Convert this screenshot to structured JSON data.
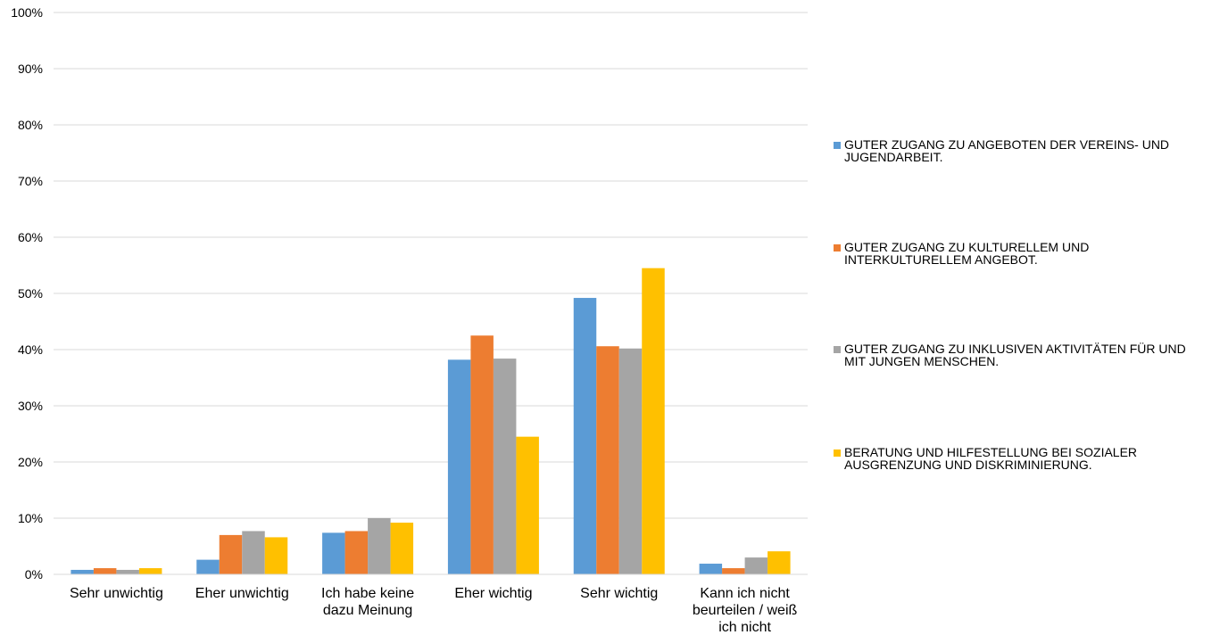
{
  "chart_data": {
    "type": "bar",
    "title": "",
    "xlabel": "",
    "ylabel": "",
    "ylim": [
      0,
      100
    ],
    "y_ticks": [
      "0%",
      "10%",
      "20%",
      "30%",
      "40%",
      "50%",
      "60%",
      "70%",
      "80%",
      "90%",
      "100%"
    ],
    "grid": true,
    "legend_position": "right",
    "categories": [
      [
        "Sehr unwichtig"
      ],
      [
        "Eher unwichtig"
      ],
      [
        "Ich habe keine",
        "dazu Meinung"
      ],
      [
        "Eher wichtig"
      ],
      [
        "Sehr wichtig"
      ],
      [
        "Kann ich nicht",
        "beurteilen / weiß",
        "ich nicht"
      ]
    ],
    "series": [
      {
        "name": "GUTER ZUGANG ZU ANGEBOTEN DER VEREINS- UND JUGENDARBEIT.",
        "name_lines": [
          "GUTER ZUGANG ZU ANGEBOTEN DER VEREINS- UND",
          "JUGENDARBEIT."
        ],
        "color": "#5b9bd5",
        "values": [
          0.8,
          2.6,
          7.4,
          38.2,
          49.2,
          1.9
        ]
      },
      {
        "name": "GUTER ZUGANG ZU KULTURELLEM UND INTERKULTURELLEM ANGEBOT.",
        "name_lines": [
          "GUTER ZUGANG ZU KULTURELLEM UND",
          "INTERKULTURELLEM ANGEBOT."
        ],
        "color": "#ed7d31",
        "values": [
          1.1,
          7.0,
          7.7,
          42.5,
          40.6,
          1.1
        ]
      },
      {
        "name": "GUTER ZUGANG ZU INKLUSIVEN AKTIVITÄTEN FÜR UND MIT JUNGEN MENSCHEN.",
        "name_lines": [
          "GUTER ZUGANG ZU INKLUSIVEN AKTIVITÄTEN FÜR UND",
          "MIT JUNGEN MENSCHEN."
        ],
        "color": "#a5a5a5",
        "values": [
          0.8,
          7.7,
          10.0,
          38.4,
          40.2,
          3.0
        ]
      },
      {
        "name": "BERATUNG UND HILFESTELLUNG BEI SOZIALER AUSGRENZUNG UND DISKRIMINIERUNG.",
        "name_lines": [
          "BERATUNG UND HILFESTELLUNG BEI SOZIALER",
          "AUSGRENZUNG UND DISKRIMINIERUNG."
        ],
        "color": "#ffc000",
        "values": [
          1.1,
          6.6,
          9.2,
          24.5,
          54.5,
          4.1
        ]
      }
    ]
  }
}
